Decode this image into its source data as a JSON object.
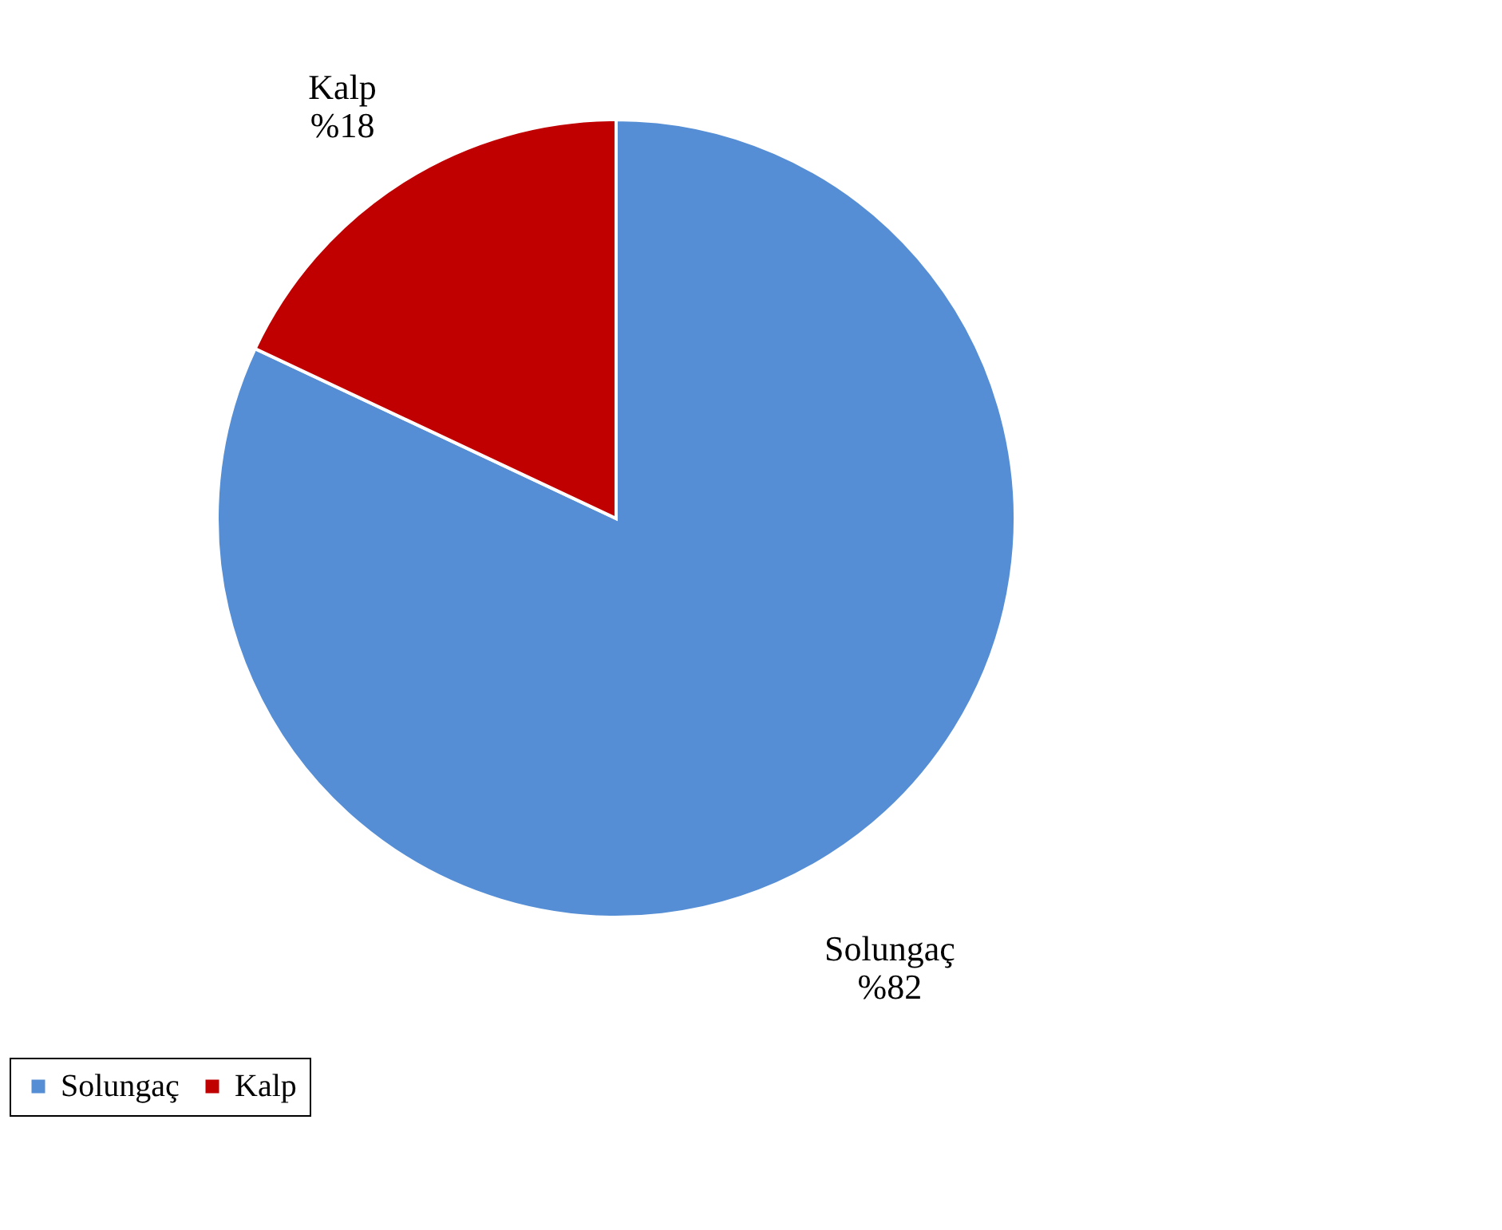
{
  "chart_data": {
    "type": "pie",
    "categories": [
      "Solungaç",
      "Kalp"
    ],
    "values": [
      82,
      18
    ],
    "colors": [
      "#558ed5",
      "#c00000"
    ],
    "value_labels": [
      "%82",
      "%18"
    ],
    "legend": "bottom"
  }
}
